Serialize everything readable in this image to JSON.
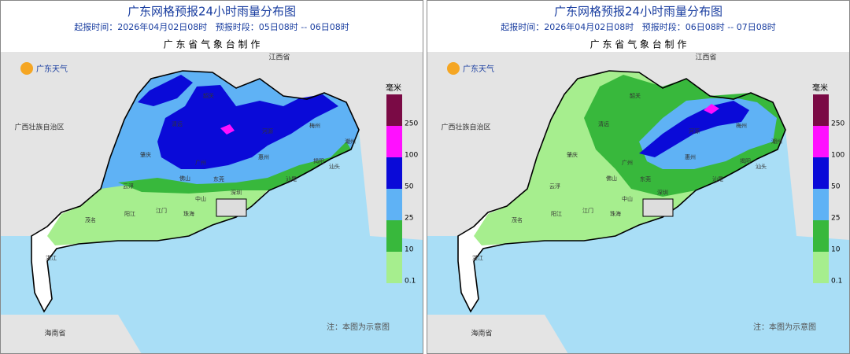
{
  "panels": [
    {
      "title": "广东网格预报24小时雨量分布图",
      "subtitle": "起报时间：2026年04月02日08时   预报时段：05日08时 -- 06日08时",
      "issuer": "广 东 省 气 象 台 制 作",
      "logo": "广东天气",
      "unit": "毫米",
      "legend": [
        {
          "label": "250",
          "color": "#7a0a45"
        },
        {
          "label": "100",
          "color": "#ff10ff"
        },
        {
          "label": "50",
          "color": "#0a0ad8"
        },
        {
          "label": "25",
          "color": "#5fb2f5"
        },
        {
          "label": "10",
          "color": "#38b83c"
        },
        {
          "label": "0.1",
          "color": "#a6ee8e"
        }
      ],
      "note": "注：本图为示意图",
      "places": [
        "江西省",
        "广西壮族自治区",
        "海南省",
        "韶关",
        "河源",
        "梅州",
        "清远",
        "肇庆",
        "广州",
        "惠州",
        "潮州",
        "揭阳",
        "汕头",
        "汕尾",
        "云浮",
        "佛山",
        "东莞",
        "深圳",
        "中山",
        "江门",
        "珠海",
        "茂名",
        "阳江",
        "湛江"
      ]
    },
    {
      "title": "广东网格预报24小时雨量分布图",
      "subtitle": "起报时间：2026年04月02日08时   预报时段：06日08时 -- 07日08时",
      "issuer": "广 东 省 气 象 台 制 作",
      "logo": "广东天气",
      "unit": "毫米",
      "legend": [
        {
          "label": "250",
          "color": "#7a0a45"
        },
        {
          "label": "100",
          "color": "#ff10ff"
        },
        {
          "label": "50",
          "color": "#0a0ad8"
        },
        {
          "label": "25",
          "color": "#5fb2f5"
        },
        {
          "label": "10",
          "color": "#38b83c"
        },
        {
          "label": "0.1",
          "color": "#a6ee8e"
        }
      ],
      "note": "注：本图为示意图",
      "places": [
        "江西省",
        "广西壮族自治区",
        "海南省",
        "韶关",
        "河源",
        "梅州",
        "清远",
        "肇庆",
        "广州",
        "惠州",
        "潮州",
        "揭阳",
        "汕头",
        "汕尾",
        "云浮",
        "佛山",
        "东莞",
        "深圳",
        "中山",
        "江门",
        "珠海",
        "茂名",
        "阳江",
        "湛江"
      ]
    }
  ]
}
